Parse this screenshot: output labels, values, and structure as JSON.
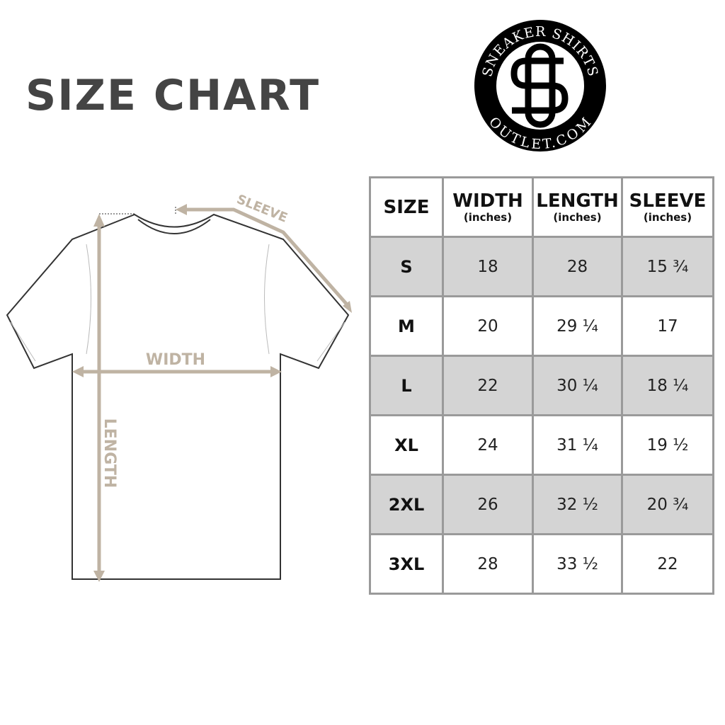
{
  "title": "SIZE CHART",
  "logo": {
    "text_top": "SNEAKER SHIRTS",
    "text_bottom": "OUTLET.COM",
    "monogram": "SS"
  },
  "diagram": {
    "sleeve_label": "SLEEVE",
    "width_label": "WIDTH",
    "length_label": "LENGTH",
    "accent_color": "#bfb3a3"
  },
  "table": {
    "headers": [
      {
        "label": "SIZE",
        "unit": ""
      },
      {
        "label": "WIDTH",
        "unit": "(inches)"
      },
      {
        "label": "LENGTH",
        "unit": "(inches)"
      },
      {
        "label": "SLEEVE",
        "unit": "(inches)"
      }
    ],
    "rows": [
      [
        "S",
        "18",
        "28",
        "15 ¾"
      ],
      [
        "M",
        "20",
        "29 ¼",
        "17"
      ],
      [
        "L",
        "22",
        "30 ¼",
        "18 ¼"
      ],
      [
        "XL",
        "24",
        "31 ¼",
        "19 ½"
      ],
      [
        "2XL",
        "26",
        "32 ½",
        "20 ¾"
      ],
      [
        "3XL",
        "28",
        "33 ½",
        "22"
      ]
    ],
    "stripe_color": "#d4d4d4",
    "border_color": "#9a9a9a"
  }
}
